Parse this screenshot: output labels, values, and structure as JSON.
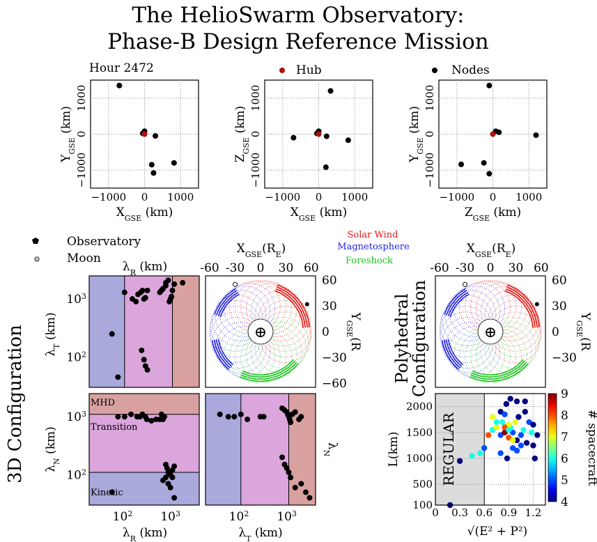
{
  "title": [
    "The HelioSwarm Observatory:",
    "Phase-B Design Reference Mission"
  ],
  "top_row": {
    "panels": [
      {
        "xlabel": "X",
        "xsub": "GSE",
        "unit": " (km)",
        "ylabel": "Y",
        "ysub": "GSE"
      },
      {
        "xlabel": "X",
        "xsub": "GSE",
        "unit": " (km)",
        "ylabel": "Z",
        "ysub": "GSE"
      },
      {
        "xlabel": "Z",
        "xsub": "GSE",
        "unit": " (km)",
        "ylabel": "Y",
        "ysub": "GSE"
      }
    ],
    "hour_label": "Hour 2472",
    "legend_hub": "Hub",
    "legend_nodes": "Nodes",
    "ticks": [
      "−1000",
      "0",
      "1000"
    ]
  },
  "orbit_legend": {
    "observatory": "Observatory",
    "moon": "Moon",
    "regions": [
      {
        "name": "Solar Wind",
        "color": "#e3150f"
      },
      {
        "name": "Magnetosphere",
        "color": "#1f1fe0"
      },
      {
        "name": "Foreshock",
        "color": "#1ec01e"
      }
    ]
  },
  "orbit_axes": {
    "xlabel_base": "X",
    "xlabel_sub": "GSE",
    "xlabel_unit": "(R",
    "xlabel_unit_sub": "E",
    "xlabel_close": ")",
    "ylabel_base": "Y",
    "ylabel_sub": "GSE",
    "xticks": [
      "-60",
      "-30",
      "0",
      "30",
      "60"
    ],
    "yticks": [
      "60",
      "30",
      "0",
      "−30",
      "−60"
    ],
    "yticks_right": [
      "60",
      "30",
      "0",
      "−30"
    ],
    "earth_symbol": "⊕"
  },
  "config_labels": {
    "left": "3D Configuration",
    "right_line1": "Polyhedral",
    "right_line2": "Configuration"
  },
  "lambda_axes": {
    "lambda_R": "λ",
    "R": "R",
    "T": "T",
    "N": "N",
    "unit": " (km)",
    "decade2": "10",
    "decade3": "10",
    "exp2": "2",
    "exp3": "3",
    "regions": {
      "mhd": "MHD",
      "transition": "Transition",
      "kinetic": "Kinetic"
    }
  },
  "colors": {
    "kinetic": "#a9a9dc",
    "transition": "#dba6dc",
    "mhd": "#d9a0a0",
    "hub": "#b0120d",
    "regular": "#dcdcdc"
  },
  "scatter_regular": {
    "regular_label": "REGULAR",
    "ylabel": "L",
    "yunit": "(km)",
    "xlabel": "√(E² + P²)",
    "yticks": [
      "2000",
      "1500",
      "1000",
      "500",
      "100"
    ],
    "xticks": [
      "0",
      "0.3",
      "0.6",
      "0.9",
      "1.2"
    ],
    "colorbar_label": "# spacecraft",
    "colorbar_ticks": [
      "9",
      "8",
      "7",
      "6",
      "5",
      "4"
    ]
  },
  "chart_data": [
    {
      "type": "scatter",
      "name": "top_xy",
      "xlim": [
        -1500,
        1500
      ],
      "ylim": [
        -1500,
        1500
      ],
      "hub": [
        [
          0,
          0
        ]
      ],
      "nodes": [
        [
          -700,
          1350
        ],
        [
          0,
          80
        ],
        [
          -50,
          20
        ],
        [
          300,
          -50
        ],
        [
          200,
          -850
        ],
        [
          820,
          -800
        ],
        [
          250,
          -1080
        ]
      ]
    },
    {
      "type": "scatter",
      "name": "top_xz",
      "xlim": [
        -1500,
        1500
      ],
      "ylim": [
        -1500,
        1500
      ],
      "hub": [
        [
          0,
          0
        ]
      ],
      "nodes": [
        [
          330,
          1200
        ],
        [
          0,
          80
        ],
        [
          -50,
          20
        ],
        [
          220,
          -60
        ],
        [
          -700,
          -100
        ],
        [
          820,
          -170
        ],
        [
          200,
          -920
        ]
      ]
    },
    {
      "type": "scatter",
      "name": "top_zy",
      "xlim": [
        -1500,
        1500
      ],
      "ylim": [
        -1500,
        1500
      ],
      "hub": [
        [
          0,
          0
        ]
      ],
      "nodes": [
        [
          -100,
          1350
        ],
        [
          80,
          80
        ],
        [
          170,
          50
        ],
        [
          1200,
          -30
        ],
        [
          -880,
          -840
        ],
        [
          -250,
          -800
        ],
        [
          -100,
          -1100
        ]
      ]
    },
    {
      "type": "scatter",
      "name": "lambdaR_vs_lambdaT",
      "xscale": "log",
      "yscale": "log",
      "xlim": [
        20,
        4000
      ],
      "ylim": [
        30,
        2500
      ],
      "x": [
        60,
        80,
        110,
        160,
        190,
        210,
        240,
        260,
        280,
        300,
        330,
        600,
        650,
        700,
        800,
        800,
        900,
        950,
        1000,
        1050,
        1100,
        1200,
        1800,
        250,
        280,
        300,
        330
      ],
      "y": [
        250,
        45,
        1300,
        1000,
        900,
        1200,
        1300,
        1400,
        1000,
        1050,
        1400,
        1300,
        1400,
        1500,
        1700,
        1900,
        2100,
        900,
        1000,
        1100,
        1400,
        1800,
        1900,
        130,
        90,
        70,
        60
      ]
    },
    {
      "type": "line",
      "name": "orbit_3d",
      "xlim": [
        -65,
        65
      ],
      "ylim": [
        -65,
        65
      ],
      "observatory": [
        55,
        32
      ],
      "moon": [
        -30,
        55
      ]
    },
    {
      "type": "line",
      "name": "orbit_polyhedral",
      "xlim": [
        -65,
        65
      ],
      "ylim": [
        -65,
        65
      ],
      "observatory": [
        55,
        32
      ],
      "moon": [
        -30,
        55
      ]
    },
    {
      "type": "scatter",
      "name": "lambdaR_vs_lambdaN",
      "xscale": "log",
      "yscale": "log",
      "xlim": [
        20,
        4000
      ],
      "ylim": [
        30,
        2500
      ],
      "x": [
        60,
        80,
        110,
        150,
        200,
        230,
        260,
        300,
        320,
        400,
        500,
        600,
        650,
        700,
        750,
        800,
        850,
        900,
        1000,
        1100,
        1200,
        700,
        800,
        900,
        1000,
        1100,
        1200
      ],
      "y": [
        50,
        1000,
        1000,
        1100,
        1000,
        1000,
        1100,
        1000,
        900,
        850,
        900,
        900,
        1100,
        900,
        1000,
        150,
        130,
        110,
        100,
        120,
        140,
        80,
        90,
        70,
        60,
        90,
        40
      ]
    },
    {
      "type": "scatter",
      "name": "lambdaT_vs_lambdaN",
      "xscale": "log",
      "yscale": "log",
      "xlim": [
        20,
        4000
      ],
      "ylim": [
        30,
        2500
      ],
      "x": [
        40,
        60,
        80,
        110,
        150,
        280,
        330,
        800,
        900,
        1000,
        1050,
        1100,
        1150,
        1200,
        1300,
        1500,
        1800,
        2000,
        800,
        900,
        1000,
        1100,
        1200,
        1500,
        2000,
        2500,
        3000
      ],
      "y": [
        1100,
        1000,
        1000,
        1100,
        900,
        1000,
        1000,
        1400,
        1300,
        1200,
        1100,
        1000,
        900,
        800,
        1100,
        1200,
        900,
        1000,
        200,
        150,
        130,
        110,
        90,
        60,
        70,
        50,
        40
      ]
    },
    {
      "type": "scatter",
      "name": "L_vs_regularity",
      "xlim": [
        0,
        1.35
      ],
      "ylim": [
        100,
        2250
      ],
      "x": [
        0.18,
        0.3,
        0.45,
        0.55,
        0.6,
        0.65,
        0.7,
        0.75,
        0.8,
        0.82,
        0.85,
        0.87,
        0.9,
        0.92,
        0.95,
        0.98,
        1.0,
        1.02,
        1.05,
        1.08,
        1.1,
        1.12,
        1.15,
        1.18,
        1.2,
        1.22,
        0.7,
        0.75,
        0.8,
        0.85,
        0.9,
        0.95,
        1.0,
        1.05,
        1.1,
        0.85,
        0.9,
        0.95,
        1.0,
        0.8,
        0.88,
        0.92,
        1.2,
        1.25
      ],
      "y": [
        100,
        950,
        1050,
        1100,
        1200,
        1450,
        1550,
        1600,
        1450,
        1700,
        1500,
        2050,
        1400,
        1600,
        1500,
        1700,
        1350,
        1800,
        1450,
        1550,
        1900,
        1300,
        1700,
        1500,
        1250,
        1000,
        1800,
        1700,
        1900,
        1850,
        1650,
        1200,
        2100,
        1250,
        2100,
        1600,
        1550,
        1350,
        1150,
        1100,
        1000,
        2150,
        1650,
        1450
      ],
      "c": [
        4,
        4,
        6,
        6,
        5,
        8,
        6,
        7,
        5,
        6,
        9,
        4,
        8,
        6,
        5,
        7,
        4,
        4,
        5,
        6,
        4,
        4,
        5,
        6,
        4,
        4,
        7,
        6,
        4,
        5,
        7,
        5,
        4,
        5,
        4,
        8,
        6,
        7,
        5,
        5,
        4,
        4,
        4,
        4
      ],
      "clim": [
        4,
        9
      ]
    }
  ]
}
